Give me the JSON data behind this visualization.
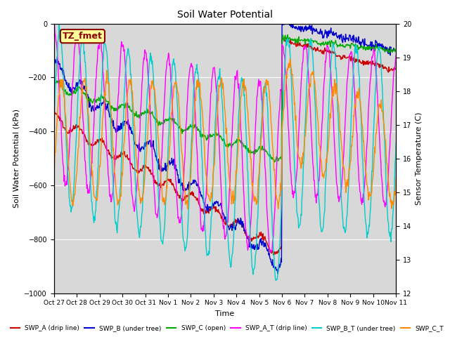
{
  "title": "Soil Water Potential",
  "xlabel": "Time",
  "ylabel_left": "Soil Water Potential (kPa)",
  "ylabel_right": "Sensor Temperature (C)",
  "ylim_left": [
    -1000,
    0
  ],
  "ylim_right": [
    12.0,
    20.0
  ],
  "annotation_text": "TZ_fmet",
  "annotation_box_color": "#FFFF99",
  "annotation_text_color": "#8B0000",
  "background_color": "#D8D8D8",
  "xtick_labels": [
    "Oct 27",
    "Oct 28",
    "Oct 29",
    "Oct 30",
    "Oct 31",
    "Nov 1",
    "Nov 2",
    "Nov 3",
    "Nov 4",
    "Nov 5",
    "Nov 6",
    "Nov 7",
    "Nov 8",
    "Nov 9",
    "Nov 10",
    "Nov 11"
  ],
  "series": {
    "SWP_A": {
      "color": "#CC0000",
      "label": "SWP_A (drip line)"
    },
    "SWP_B": {
      "color": "#0000CC",
      "label": "SWP_B (under tree)"
    },
    "SWP_C": {
      "color": "#00AA00",
      "label": "SWP_C (open)"
    },
    "SWP_A_T": {
      "color": "#FF00FF",
      "label": "SWP_A_T (drip line)"
    },
    "SWP_B_T": {
      "color": "#00CCCC",
      "label": "SWP_B_T (under tree)"
    },
    "SWP_C_T": {
      "color": "#FF8800",
      "label": "SWP_C_T"
    }
  }
}
